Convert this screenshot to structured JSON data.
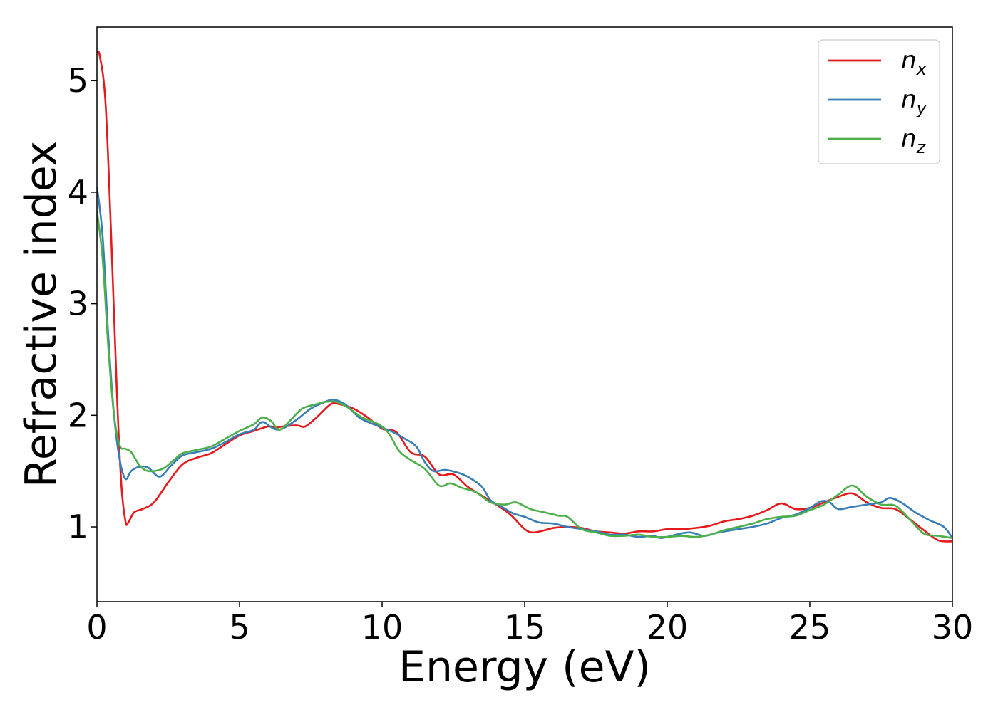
{
  "chart_data": {
    "type": "line",
    "xlabel": "Energy (eV)",
    "ylabel": "Refractive index",
    "xlim": [
      0,
      30
    ],
    "ylim": [
      0.33,
      5.48
    ],
    "xticks": [
      0,
      5,
      10,
      15,
      20,
      25,
      30
    ],
    "xtick_labels": [
      "0",
      "5",
      "10",
      "15",
      "20",
      "25",
      "30"
    ],
    "yticks": [
      1,
      2,
      3,
      4,
      5
    ],
    "ytick_labels": [
      "1",
      "2",
      "3",
      "4",
      "5"
    ],
    "grid": false,
    "legend_position": "top-right",
    "series": [
      {
        "name": "n",
        "sub": "x",
        "color": "#e41a1c",
        "points": [
          [
            0,
            5.25
          ],
          [
            0.1,
            5.22
          ],
          [
            0.3,
            4.8
          ],
          [
            0.5,
            3.6
          ],
          [
            0.7,
            2.2
          ],
          [
            0.85,
            1.4
          ],
          [
            1.0,
            1.05
          ],
          [
            1.1,
            1.04
          ],
          [
            1.3,
            1.13
          ],
          [
            1.6,
            1.16
          ],
          [
            2.0,
            1.22
          ],
          [
            2.5,
            1.4
          ],
          [
            3.0,
            1.56
          ],
          [
            3.5,
            1.62
          ],
          [
            4.0,
            1.66
          ],
          [
            4.5,
            1.74
          ],
          [
            5.0,
            1.82
          ],
          [
            5.5,
            1.86
          ],
          [
            6.0,
            1.9
          ],
          [
            6.3,
            1.89
          ],
          [
            6.5,
            1.9
          ],
          [
            7.0,
            1.91
          ],
          [
            7.3,
            1.9
          ],
          [
            7.7,
            1.98
          ],
          [
            8.2,
            2.1
          ],
          [
            8.5,
            2.1
          ],
          [
            9.0,
            2.06
          ],
          [
            9.5,
            1.98
          ],
          [
            10.0,
            1.88
          ],
          [
            10.5,
            1.85
          ],
          [
            11.0,
            1.67
          ],
          [
            11.5,
            1.63
          ],
          [
            12.0,
            1.47
          ],
          [
            12.5,
            1.47
          ],
          [
            13.0,
            1.36
          ],
          [
            13.5,
            1.28
          ],
          [
            14.0,
            1.2
          ],
          [
            14.5,
            1.11
          ],
          [
            15.0,
            0.98
          ],
          [
            15.3,
            0.95
          ],
          [
            15.7,
            0.97
          ],
          [
            16.0,
            0.99
          ],
          [
            16.5,
            1.0
          ],
          [
            17.0,
            0.99
          ],
          [
            17.5,
            0.96
          ],
          [
            18.0,
            0.95
          ],
          [
            18.5,
            0.94
          ],
          [
            19.0,
            0.96
          ],
          [
            19.5,
            0.96
          ],
          [
            20.0,
            0.98
          ],
          [
            20.5,
            0.98
          ],
          [
            21.0,
            0.99
          ],
          [
            21.5,
            1.01
          ],
          [
            22.0,
            1.05
          ],
          [
            22.5,
            1.07
          ],
          [
            23.0,
            1.1
          ],
          [
            23.5,
            1.15
          ],
          [
            24.0,
            1.21
          ],
          [
            24.5,
            1.16
          ],
          [
            25.0,
            1.17
          ],
          [
            25.5,
            1.22
          ],
          [
            26.0,
            1.27
          ],
          [
            26.5,
            1.3
          ],
          [
            27.0,
            1.22
          ],
          [
            27.5,
            1.17
          ],
          [
            28.0,
            1.16
          ],
          [
            28.5,
            1.07
          ],
          [
            29.0,
            0.97
          ],
          [
            29.5,
            0.88
          ],
          [
            30.0,
            0.87
          ]
        ]
      },
      {
        "name": "n",
        "sub": "y",
        "color": "#377eb8",
        "points": [
          [
            0,
            4.05
          ],
          [
            0.2,
            3.6
          ],
          [
            0.4,
            2.7
          ],
          [
            0.6,
            2.0
          ],
          [
            0.8,
            1.6
          ],
          [
            1.0,
            1.43
          ],
          [
            1.2,
            1.5
          ],
          [
            1.5,
            1.54
          ],
          [
            1.8,
            1.53
          ],
          [
            2.2,
            1.45
          ],
          [
            2.6,
            1.55
          ],
          [
            3.0,
            1.64
          ],
          [
            3.5,
            1.67
          ],
          [
            4.0,
            1.7
          ],
          [
            4.5,
            1.76
          ],
          [
            5.0,
            1.83
          ],
          [
            5.5,
            1.87
          ],
          [
            5.8,
            1.94
          ],
          [
            6.2,
            1.88
          ],
          [
            6.5,
            1.88
          ],
          [
            7.0,
            1.96
          ],
          [
            7.5,
            2.06
          ],
          [
            8.0,
            2.12
          ],
          [
            8.3,
            2.14
          ],
          [
            8.7,
            2.1
          ],
          [
            9.2,
            1.98
          ],
          [
            9.7,
            1.92
          ],
          [
            10.3,
            1.86
          ],
          [
            10.8,
            1.79
          ],
          [
            11.2,
            1.72
          ],
          [
            11.5,
            1.58
          ],
          [
            11.8,
            1.5
          ],
          [
            12.2,
            1.51
          ],
          [
            12.6,
            1.49
          ],
          [
            13.0,
            1.45
          ],
          [
            13.5,
            1.36
          ],
          [
            13.8,
            1.24
          ],
          [
            14.2,
            1.18
          ],
          [
            14.6,
            1.12
          ],
          [
            15.0,
            1.09
          ],
          [
            15.5,
            1.04
          ],
          [
            16.0,
            1.03
          ],
          [
            16.5,
            1.0
          ],
          [
            17.0,
            0.98
          ],
          [
            17.5,
            0.96
          ],
          [
            18.0,
            0.93
          ],
          [
            18.5,
            0.93
          ],
          [
            19.0,
            0.91
          ],
          [
            19.5,
            0.92
          ],
          [
            19.8,
            0.9
          ],
          [
            20.3,
            0.93
          ],
          [
            20.8,
            0.95
          ],
          [
            21.3,
            0.92
          ],
          [
            21.8,
            0.95
          ],
          [
            22.5,
            0.98
          ],
          [
            23.0,
            1.0
          ],
          [
            23.5,
            1.03
          ],
          [
            24.0,
            1.08
          ],
          [
            24.5,
            1.11
          ],
          [
            25.0,
            1.17
          ],
          [
            25.4,
            1.23
          ],
          [
            25.7,
            1.22
          ],
          [
            26.0,
            1.16
          ],
          [
            26.5,
            1.18
          ],
          [
            27.0,
            1.2
          ],
          [
            27.5,
            1.22
          ],
          [
            27.8,
            1.26
          ],
          [
            28.2,
            1.22
          ],
          [
            28.7,
            1.13
          ],
          [
            29.2,
            1.06
          ],
          [
            29.7,
            1.0
          ],
          [
            30.0,
            0.9
          ]
        ]
      },
      {
        "name": "n",
        "sub": "z",
        "color": "#4daf4a",
        "points": [
          [
            0,
            3.83
          ],
          [
            0.2,
            3.4
          ],
          [
            0.4,
            2.6
          ],
          [
            0.6,
            2.0
          ],
          [
            0.8,
            1.73
          ],
          [
            1.0,
            1.7
          ],
          [
            1.2,
            1.67
          ],
          [
            1.5,
            1.55
          ],
          [
            1.8,
            1.5
          ],
          [
            2.3,
            1.52
          ],
          [
            2.7,
            1.6
          ],
          [
            3.0,
            1.66
          ],
          [
            3.5,
            1.69
          ],
          [
            4.0,
            1.72
          ],
          [
            4.5,
            1.79
          ],
          [
            5.0,
            1.86
          ],
          [
            5.5,
            1.92
          ],
          [
            5.8,
            1.98
          ],
          [
            6.1,
            1.95
          ],
          [
            6.4,
            1.87
          ],
          [
            6.8,
            1.96
          ],
          [
            7.2,
            2.06
          ],
          [
            7.7,
            2.1
          ],
          [
            8.0,
            2.12
          ],
          [
            8.4,
            2.12
          ],
          [
            8.8,
            2.07
          ],
          [
            9.3,
            1.98
          ],
          [
            9.8,
            1.93
          ],
          [
            10.2,
            1.85
          ],
          [
            10.6,
            1.68
          ],
          [
            11.0,
            1.6
          ],
          [
            11.5,
            1.52
          ],
          [
            12.0,
            1.37
          ],
          [
            12.4,
            1.39
          ],
          [
            12.8,
            1.35
          ],
          [
            13.3,
            1.31
          ],
          [
            13.8,
            1.22
          ],
          [
            14.3,
            1.2
          ],
          [
            14.7,
            1.22
          ],
          [
            15.2,
            1.16
          ],
          [
            15.7,
            1.13
          ],
          [
            16.2,
            1.1
          ],
          [
            16.5,
            1.09
          ],
          [
            17.0,
            0.98
          ],
          [
            17.5,
            0.95
          ],
          [
            18.0,
            0.92
          ],
          [
            18.5,
            0.92
          ],
          [
            19.0,
            0.93
          ],
          [
            19.5,
            0.91
          ],
          [
            20.0,
            0.91
          ],
          [
            20.5,
            0.92
          ],
          [
            21.0,
            0.91
          ],
          [
            21.5,
            0.93
          ],
          [
            22.0,
            0.97
          ],
          [
            22.5,
            1.0
          ],
          [
            23.0,
            1.03
          ],
          [
            23.5,
            1.07
          ],
          [
            24.0,
            1.09
          ],
          [
            24.5,
            1.1
          ],
          [
            25.0,
            1.15
          ],
          [
            25.5,
            1.2
          ],
          [
            26.0,
            1.29
          ],
          [
            26.5,
            1.37
          ],
          [
            27.0,
            1.27
          ],
          [
            27.5,
            1.2
          ],
          [
            28.0,
            1.19
          ],
          [
            28.5,
            1.07
          ],
          [
            29.0,
            0.94
          ],
          [
            29.5,
            0.92
          ],
          [
            30.0,
            0.9
          ]
        ]
      }
    ]
  }
}
